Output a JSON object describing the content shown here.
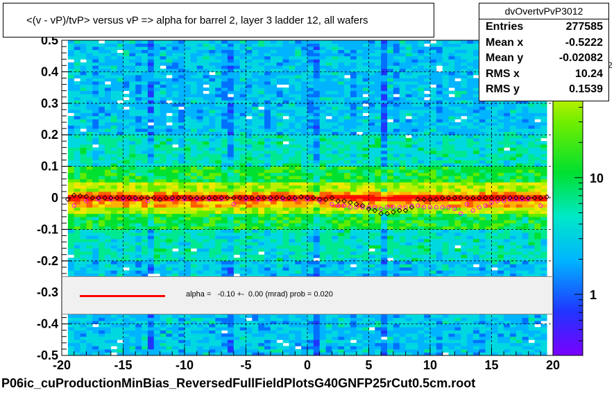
{
  "title": "<(v - vP)/tvP> versus   vP => alpha for barrel 2, layer 3 ladder 12, all wafers",
  "footer": "P06ic_cuProductionMinBias_ReversedFullFieldPlotsG40GNFP25rCut0.5cm.root",
  "stats": {
    "name": "dvOvertvPvP3012",
    "rows": [
      {
        "label": "Entries",
        "value": "277585"
      },
      {
        "label": "Mean x",
        "value": "-0.5222"
      },
      {
        "label": "Mean y",
        "value": "-0.02082"
      },
      {
        "label": "RMS x",
        "value": "10.24"
      },
      {
        "label": "RMS y",
        "value": "0.1539"
      }
    ]
  },
  "legend": {
    "text": "alpha =   -0.10 +-  0.00 (mrad) prob = 0.020"
  },
  "colors": {
    "fit_line": "#ff0000",
    "legend_bg": "#f0f0f0"
  },
  "chart_data": {
    "type": "heatmap",
    "xlim": [
      -20,
      20
    ],
    "ylim": [
      -0.5,
      0.5
    ],
    "x_ticks": [
      -20,
      -15,
      -10,
      -5,
      0,
      5,
      10,
      15,
      20
    ],
    "x_tick_labels": [
      "-20",
      "-15",
      "-10",
      "-5",
      "0",
      "5",
      "10",
      "15",
      "20"
    ],
    "y_ticks": [
      -0.5,
      -0.4,
      -0.3,
      -0.2,
      -0.1,
      0,
      0.1,
      0.2,
      0.3,
      0.4,
      0.5
    ],
    "y_tick_labels": [
      "-0.5",
      "-0.4",
      "-0.3",
      "-0.2",
      "-0.1",
      "0",
      "0.1",
      "0.2",
      "0.3",
      "0.4",
      "0.5"
    ],
    "grid": true,
    "colorbar": {
      "scale": "log",
      "range": [
        0.3,
        150
      ],
      "tick_values": [
        1,
        10
      ],
      "tick_labels": [
        "1",
        "10"
      ],
      "partial_top_label": "2"
    },
    "data_x_range": [
      -19.5,
      19.5
    ],
    "fit_line": {
      "x": [
        -19.5,
        19.5
      ],
      "y": [
        0.0,
        0.0
      ],
      "color": "#ff0000"
    },
    "profile_black": [
      {
        "x": -19.5,
        "y": -0.005
      },
      {
        "x": -19.0,
        "y": 0.008
      },
      {
        "x": -18.5,
        "y": 0.006
      },
      {
        "x": -18.0,
        "y": 0.004
      },
      {
        "x": -17.5,
        "y": 0.0
      },
      {
        "x": -17.0,
        "y": 0.0
      },
      {
        "x": -16.5,
        "y": 0.0
      },
      {
        "x": -16.0,
        "y": 0.0
      },
      {
        "x": -15.5,
        "y": 0.0
      },
      {
        "x": -15.0,
        "y": 0.0
      },
      {
        "x": -14.5,
        "y": 0.0
      },
      {
        "x": -14.0,
        "y": 0.0
      },
      {
        "x": -13.5,
        "y": 0.0
      },
      {
        "x": -13.0,
        "y": 0.0
      },
      {
        "x": -12.5,
        "y": 0.0
      },
      {
        "x": -12.0,
        "y": -0.005
      },
      {
        "x": -11.5,
        "y": 0.0
      },
      {
        "x": -11.0,
        "y": 0.0
      },
      {
        "x": -10.5,
        "y": 0.0
      },
      {
        "x": -10.0,
        "y": 0.0
      },
      {
        "x": -9.5,
        "y": 0.0
      },
      {
        "x": -9.0,
        "y": 0.0
      },
      {
        "x": -8.5,
        "y": 0.0
      },
      {
        "x": -8.0,
        "y": 0.0
      },
      {
        "x": -7.5,
        "y": 0.0
      },
      {
        "x": -7.0,
        "y": 0.0
      },
      {
        "x": -6.5,
        "y": 0.0
      },
      {
        "x": -6.0,
        "y": 0.0
      },
      {
        "x": -5.5,
        "y": 0.0
      },
      {
        "x": -5.0,
        "y": 0.0
      },
      {
        "x": -4.5,
        "y": 0.0
      },
      {
        "x": -4.0,
        "y": 0.0
      },
      {
        "x": -3.5,
        "y": 0.0
      },
      {
        "x": -3.0,
        "y": 0.0
      },
      {
        "x": -2.5,
        "y": 0.0
      },
      {
        "x": -2.0,
        "y": 0.0
      },
      {
        "x": -1.5,
        "y": 0.0
      },
      {
        "x": -1.0,
        "y": 0.0
      },
      {
        "x": -0.5,
        "y": 0.003
      },
      {
        "x": 0.0,
        "y": 0.0
      },
      {
        "x": 0.5,
        "y": 0.0
      },
      {
        "x": 1.0,
        "y": -0.005
      },
      {
        "x": 1.5,
        "y": -0.005
      },
      {
        "x": 2.0,
        "y": 0.0
      },
      {
        "x": 2.5,
        "y": -0.01
      },
      {
        "x": 3.0,
        "y": -0.01
      },
      {
        "x": 3.5,
        "y": -0.015
      },
      {
        "x": 4.0,
        "y": -0.02
      },
      {
        "x": 4.5,
        "y": -0.025
      },
      {
        "x": 5.0,
        "y": -0.035
      },
      {
        "x": 5.5,
        "y": -0.04
      },
      {
        "x": 6.0,
        "y": -0.05
      },
      {
        "x": 6.5,
        "y": -0.05
      },
      {
        "x": 7.0,
        "y": -0.045
      },
      {
        "x": 7.5,
        "y": -0.04
      },
      {
        "x": 8.0,
        "y": -0.04
      },
      {
        "x": 8.5,
        "y": -0.03
      },
      {
        "x": 9.0,
        "y": -0.005
      },
      {
        "x": 9.5,
        "y": -0.005
      },
      {
        "x": 10.0,
        "y": -0.005
      },
      {
        "x": 10.5,
        "y": -0.005
      },
      {
        "x": 11.0,
        "y": 0.0
      },
      {
        "x": 11.5,
        "y": 0.0
      },
      {
        "x": 12.0,
        "y": 0.0
      },
      {
        "x": 12.5,
        "y": 0.0
      },
      {
        "x": 13.0,
        "y": 0.0
      },
      {
        "x": 13.5,
        "y": 0.0
      },
      {
        "x": 14.0,
        "y": 0.0
      },
      {
        "x": 14.5,
        "y": 0.0
      },
      {
        "x": 15.0,
        "y": 0.0
      },
      {
        "x": 15.5,
        "y": 0.0
      },
      {
        "x": 16.0,
        "y": 0.0
      },
      {
        "x": 16.5,
        "y": 0.0
      },
      {
        "x": 17.0,
        "y": 0.0
      },
      {
        "x": 17.5,
        "y": 0.0
      },
      {
        "x": 18.0,
        "y": 0.0
      },
      {
        "x": 18.5,
        "y": 0.0
      },
      {
        "x": 19.0,
        "y": 0.0
      },
      {
        "x": 19.5,
        "y": 0.003
      }
    ],
    "profile_magenta": [
      {
        "x": -19.0,
        "y": -0.025
      },
      {
        "x": -18.0,
        "y": -0.01
      },
      {
        "x": -17.0,
        "y": -0.005
      },
      {
        "x": -16.0,
        "y": -0.005
      },
      {
        "x": -15.0,
        "y": -0.005
      },
      {
        "x": -14.0,
        "y": -0.005
      },
      {
        "x": -13.0,
        "y": -0.01
      },
      {
        "x": -12.0,
        "y": -0.005
      },
      {
        "x": -11.0,
        "y": -0.005
      },
      {
        "x": -10.0,
        "y": -0.005
      },
      {
        "x": -9.0,
        "y": -0.005
      },
      {
        "x": -8.0,
        "y": -0.005
      },
      {
        "x": -7.0,
        "y": -0.005
      },
      {
        "x": -6.0,
        "y": -0.02
      },
      {
        "x": -5.0,
        "y": -0.005
      },
      {
        "x": -4.0,
        "y": -0.005
      },
      {
        "x": -3.0,
        "y": -0.005
      },
      {
        "x": -2.0,
        "y": -0.005
      },
      {
        "x": -1.0,
        "y": -0.005
      },
      {
        "x": 0.0,
        "y": -0.005
      },
      {
        "x": 1.0,
        "y": -0.01
      },
      {
        "x": 2.0,
        "y": -0.02
      },
      {
        "x": 2.5,
        "y": -0.025
      },
      {
        "x": 3.0,
        "y": -0.025
      },
      {
        "x": 3.5,
        "y": -0.03
      },
      {
        "x": 4.0,
        "y": -0.03
      },
      {
        "x": 4.5,
        "y": -0.03
      },
      {
        "x": 5.0,
        "y": -0.03
      },
      {
        "x": 5.5,
        "y": -0.03
      },
      {
        "x": 6.0,
        "y": -0.035
      },
      {
        "x": 6.5,
        "y": -0.03
      },
      {
        "x": 7.0,
        "y": -0.03
      },
      {
        "x": 7.5,
        "y": -0.03
      },
      {
        "x": 8.0,
        "y": -0.03
      },
      {
        "x": 8.5,
        "y": -0.025
      },
      {
        "x": 9.0,
        "y": -0.025
      },
      {
        "x": 9.5,
        "y": -0.03
      },
      {
        "x": 10.0,
        "y": -0.03
      },
      {
        "x": 10.5,
        "y": -0.03
      },
      {
        "x": 11.0,
        "y": -0.03
      },
      {
        "x": 11.5,
        "y": -0.03
      },
      {
        "x": 12.0,
        "y": -0.035
      },
      {
        "x": 12.5,
        "y": -0.05
      },
      {
        "x": 13.0,
        "y": -0.02
      },
      {
        "x": 13.5,
        "y": -0.04
      },
      {
        "x": 14.0,
        "y": -0.03
      },
      {
        "x": 14.5,
        "y": -0.025
      },
      {
        "x": 15.0,
        "y": -0.015
      },
      {
        "x": 15.5,
        "y": -0.01
      },
      {
        "x": 16.0,
        "y": -0.01
      },
      {
        "x": 16.5,
        "y": -0.005
      },
      {
        "x": 17.0,
        "y": -0.005
      },
      {
        "x": 17.5,
        "y": -0.005
      },
      {
        "x": 18.0,
        "y": -0.005
      },
      {
        "x": 19.0,
        "y": -0.025
      }
    ]
  }
}
